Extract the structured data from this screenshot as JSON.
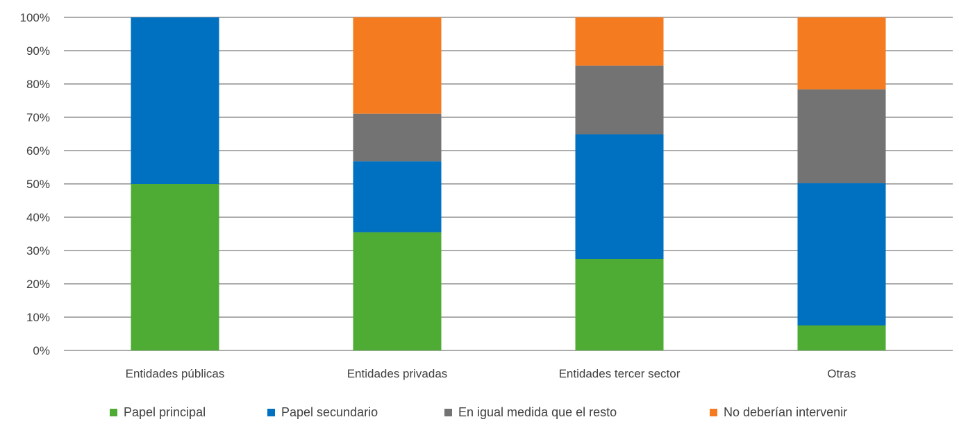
{
  "chart_data": {
    "type": "bar",
    "stacked": true,
    "percent": true,
    "categories": [
      "Entidades públicas",
      "Entidades privadas",
      "Entidades tercer sector",
      "Otras"
    ],
    "series": [
      {
        "name": "Papel principal",
        "color": "#4EAC34",
        "values": [
          50,
          35.5,
          27.5,
          7.5
        ]
      },
      {
        "name": "Papel secundario",
        "color": "#0070C0",
        "values": [
          50,
          21.3,
          37.4,
          42.7
        ]
      },
      {
        "name": "En igual medida que el resto",
        "color": "#737373",
        "values": [
          0,
          14.3,
          20.6,
          28.2
        ]
      },
      {
        "name": "No deberían intervenir",
        "color": "#F47B20",
        "values": [
          0,
          28.9,
          14.5,
          21.6
        ]
      }
    ],
    "ylim": [
      0,
      100
    ],
    "yticks": [
      "0%",
      "10%",
      "20%",
      "30%",
      "40%",
      "50%",
      "60%",
      "70%",
      "80%",
      "90%",
      "100%"
    ],
    "grid": true,
    "legend_position": "bottom",
    "title": "",
    "xlabel": "",
    "ylabel": ""
  }
}
